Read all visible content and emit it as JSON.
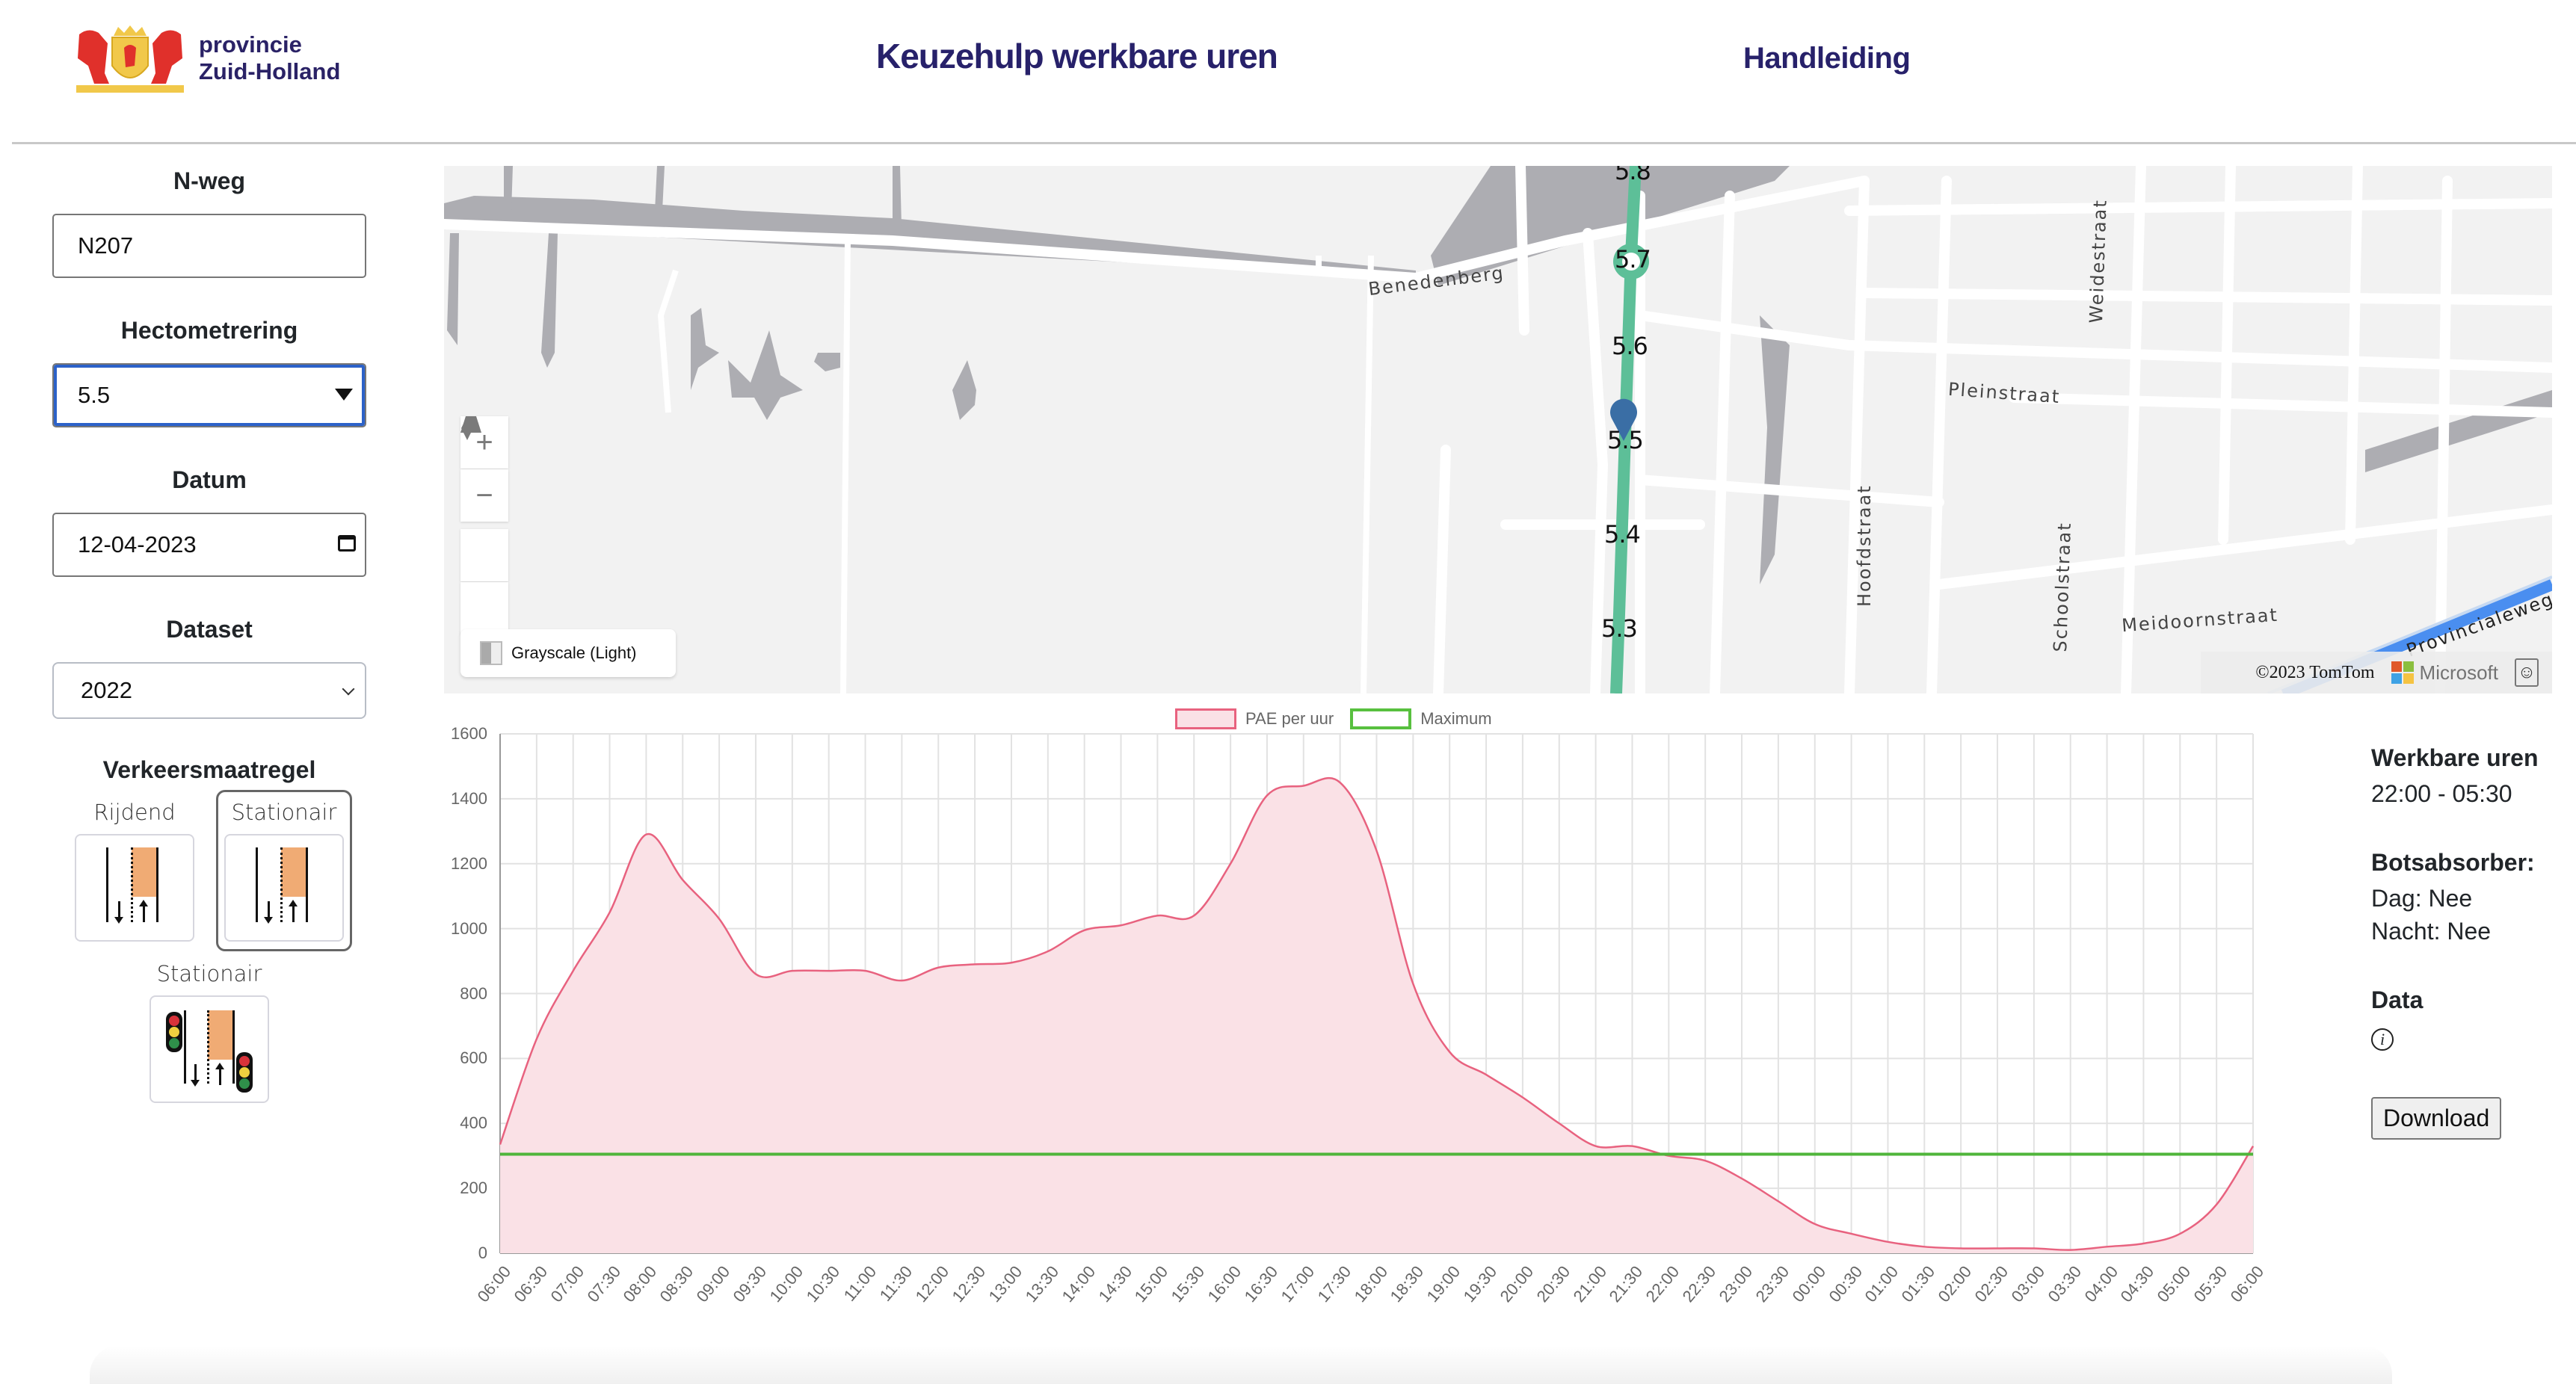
{
  "header": {
    "logo_line1": "provincie",
    "logo_line2": "Zuid-Holland",
    "title": "Keuzehulp werkbare uren",
    "manual_link": "Handleiding"
  },
  "sidebar": {
    "nweg": {
      "label": "N-weg",
      "value": "N207"
    },
    "hectometrering": {
      "label": "Hectometrering",
      "value": "5.5"
    },
    "datum": {
      "label": "Datum",
      "value": "12-04-2023"
    },
    "dataset": {
      "label": "Dataset",
      "value": "2022"
    },
    "verkeersmaatregel": {
      "label": "Verkeersmaatregel",
      "options": [
        {
          "label": "Rijdend",
          "selected": false
        },
        {
          "label": "Stationair",
          "selected": true
        },
        {
          "label": "Stationair",
          "selected": false,
          "with_traffic_lights": true
        }
      ]
    }
  },
  "map": {
    "hectometer_labels": [
      "5.7",
      "5.6",
      "5.5",
      "5.4",
      "5.3"
    ],
    "selected_hectometer": "5.5",
    "streets": [
      "Benedenberg",
      "Pleinstraat",
      "Weidestraat",
      "Hoofdstraat",
      "Schoolstraat",
      "Meidoornstraat",
      "Provincialeweg"
    ],
    "style_picker": "Grayscale (Light)",
    "attribution": "©2023 TomTom",
    "microsoft": "Microsoft",
    "controls": {
      "zoom_in": "+",
      "zoom_out": "−"
    },
    "colors": {
      "route": "#5dbf98",
      "marker": "#3a6ea5",
      "land": "#f2f2f2",
      "water": "#adadb2"
    }
  },
  "chart_data": {
    "type": "area",
    "title": "",
    "legend": [
      "PAE per uur",
      "Maximum"
    ],
    "legend_position": "top",
    "xlabel": "",
    "ylabel": "",
    "ylim": [
      0,
      1600
    ],
    "yticks": [
      0,
      200,
      400,
      600,
      800,
      1000,
      1200,
      1400,
      1600
    ],
    "grid": true,
    "categories": [
      "06:00",
      "06:30",
      "07:00",
      "07:30",
      "08:00",
      "08:30",
      "09:00",
      "09:30",
      "10:00",
      "10:30",
      "11:00",
      "11:30",
      "12:00",
      "12:30",
      "13:00",
      "13:30",
      "14:00",
      "14:30",
      "15:00",
      "15:30",
      "16:00",
      "16:30",
      "17:00",
      "17:30",
      "18:00",
      "18:30",
      "19:00",
      "19:30",
      "20:00",
      "20:30",
      "21:00",
      "21:30",
      "22:00",
      "22:30",
      "23:00",
      "23:30",
      "00:00",
      "00:30",
      "01:00",
      "01:30",
      "02:00",
      "02:30",
      "03:00",
      "03:30",
      "04:00",
      "04:30",
      "05:00",
      "05:30",
      "06:00"
    ],
    "series": [
      {
        "name": "PAE per uur",
        "color": "#e8627f",
        "fill": "#fae1e6",
        "values": [
          335,
          660,
          870,
          1050,
          1290,
          1150,
          1030,
          860,
          870,
          870,
          870,
          840,
          880,
          890,
          895,
          930,
          995,
          1010,
          1040,
          1040,
          1200,
          1410,
          1440,
          1450,
          1240,
          830,
          620,
          550,
          480,
          400,
          330,
          330,
          300,
          285,
          230,
          160,
          90,
          60,
          35,
          20,
          15,
          15,
          15,
          10,
          20,
          30,
          60,
          150,
          330
        ]
      },
      {
        "name": "Maximum",
        "color": "#4fb53a",
        "values": [
          305,
          305,
          305,
          305,
          305,
          305,
          305,
          305,
          305,
          305,
          305,
          305,
          305,
          305,
          305,
          305,
          305,
          305,
          305,
          305,
          305,
          305,
          305,
          305,
          305,
          305,
          305,
          305,
          305,
          305,
          305,
          305,
          305,
          305,
          305,
          305,
          305,
          305,
          305,
          305,
          305,
          305,
          305,
          305,
          305,
          305,
          305,
          305,
          305
        ]
      }
    ]
  },
  "info": {
    "werkbare_uren_label": "Werkbare uren",
    "werkbare_uren_value": "22:00 - 05:30",
    "botsabsorber_label": "Botsabsorber:",
    "dag": "Dag: Nee",
    "nacht": "Nacht: Nee",
    "data_label": "Data",
    "info_icon": "i",
    "download": "Download"
  }
}
